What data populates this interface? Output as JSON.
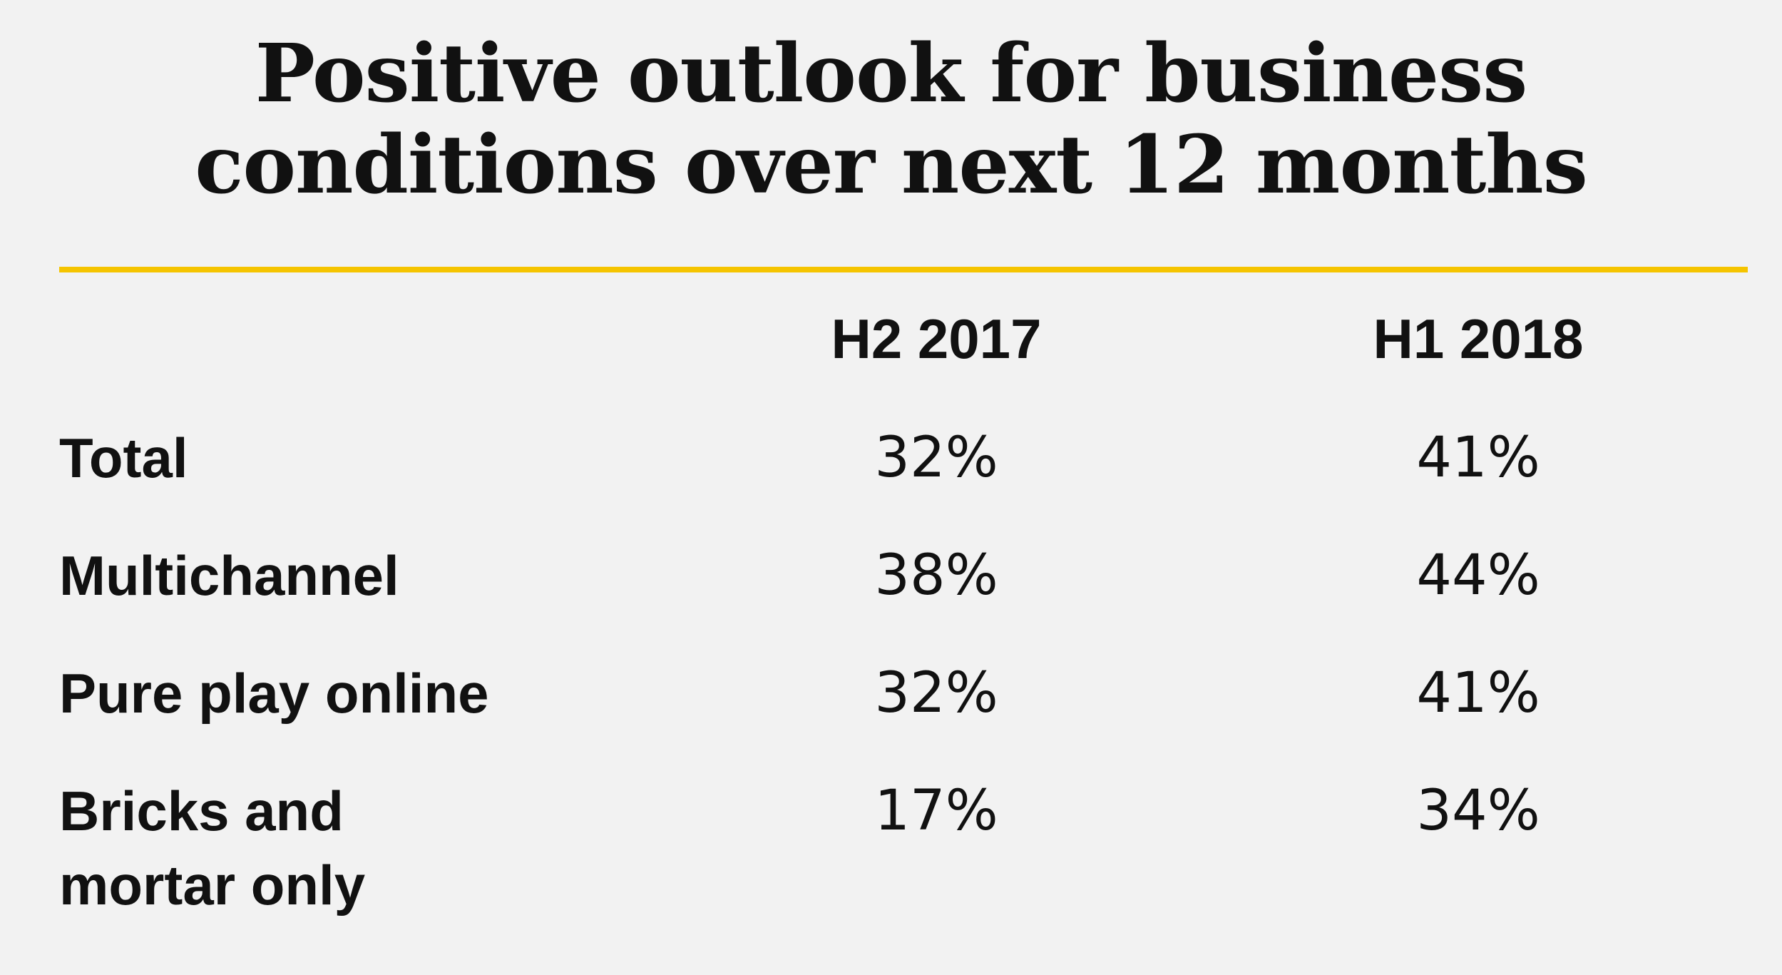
{
  "title_lines": [
    "Positive outlook for business",
    "conditions over next 12 months"
  ],
  "colors": {
    "background": "#f2f2f2",
    "text": "#111111",
    "rule": "#f5c400"
  },
  "chart_data": {
    "type": "table",
    "title": "Positive outlook for business conditions over next 12 months",
    "columns": [
      "H2 2017",
      "H1 2018"
    ],
    "rows": [
      {
        "label_lines": [
          "Total"
        ],
        "values": [
          "32%",
          "41%"
        ]
      },
      {
        "label_lines": [
          "Multichannel"
        ],
        "values": [
          "38%",
          "44%"
        ]
      },
      {
        "label_lines": [
          "Pure play online"
        ],
        "values": [
          "32%",
          "41%"
        ]
      },
      {
        "label_lines": [
          "Bricks and",
          "mortar only"
        ],
        "values": [
          "17%",
          "34%"
        ]
      }
    ]
  }
}
